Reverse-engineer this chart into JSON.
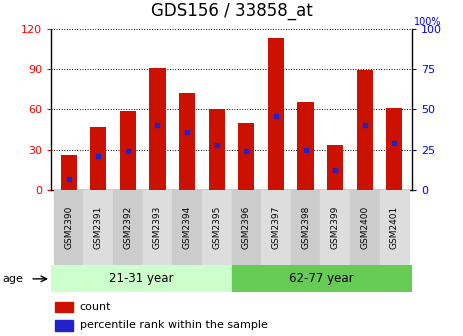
{
  "title": "GDS156 / 33858_at",
  "samples": [
    "GSM2390",
    "GSM2391",
    "GSM2392",
    "GSM2393",
    "GSM2394",
    "GSM2395",
    "GSM2396",
    "GSM2397",
    "GSM2398",
    "GSM2399",
    "GSM2400",
    "GSM2401"
  ],
  "counts": [
    26,
    47,
    59,
    91,
    72,
    60,
    50,
    113,
    65,
    33,
    89,
    61
  ],
  "percentiles": [
    7,
    21,
    24,
    40,
    36,
    28,
    24,
    46,
    25,
    12,
    40,
    29
  ],
  "groups": [
    {
      "label": "21-31 year",
      "start": 0,
      "end": 6
    },
    {
      "label": "62-77 year",
      "start": 6,
      "end": 12
    }
  ],
  "ylim_left": [
    0,
    120
  ],
  "ylim_right": [
    0,
    100
  ],
  "left_ticks": [
    0,
    30,
    60,
    90,
    120
  ],
  "right_ticks": [
    0,
    25,
    50,
    75,
    100
  ],
  "bar_color": "#cc1100",
  "dot_color": "#2222cc",
  "bar_width": 0.55,
  "title_fontsize": 12,
  "background_color": "#ffffff",
  "age_label": "age",
  "legend_count_label": "count",
  "legend_percentile_label": "percentile rank within the sample",
  "group_box_color_1": "#ccffcc",
  "group_box_color_2": "#66cc55",
  "tick_gray_even": "#cccccc",
  "tick_gray_odd": "#dddddd"
}
